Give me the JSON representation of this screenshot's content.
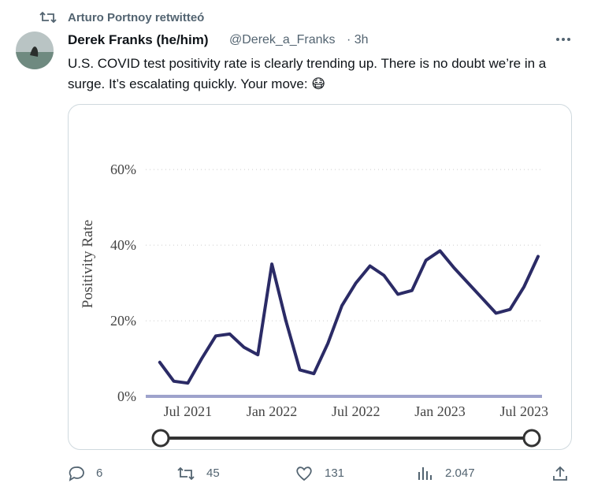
{
  "retweeted_by": "Arturo Portnoy retwitteó",
  "author": {
    "name": "Derek Franks (he/him)",
    "handle": "@Derek_a_Franks",
    "time": "· 3h"
  },
  "tweet_text": "U.S. COVID test positivity rate is clearly trending up. There is no doubt we’re in a surge. It’s escalating quickly. Your move: 😷",
  "stats": {
    "replies": "6",
    "retweets": "45",
    "likes": "131",
    "views": "2.047"
  },
  "chart_data": {
    "type": "line",
    "y_label": "Positivity Rate",
    "color": "#2b2b66",
    "x": [
      "2021-05",
      "2021-06",
      "2021-07",
      "2021-08",
      "2021-09",
      "2021-10",
      "2021-11",
      "2021-12",
      "2022-01",
      "2022-02",
      "2022-03",
      "2022-04",
      "2022-05",
      "2022-06",
      "2022-07",
      "2022-08",
      "2022-09",
      "2022-10",
      "2022-11",
      "2022-12",
      "2023-01",
      "2023-02",
      "2023-03",
      "2023-04",
      "2023-05",
      "2023-06",
      "2023-07",
      "2023-08"
    ],
    "values": [
      9,
      4,
      3.5,
      10,
      16,
      16.5,
      13,
      11,
      35,
      20,
      7,
      6,
      14,
      24,
      30,
      34.5,
      32,
      27,
      28,
      36,
      38.5,
      34,
      30,
      26,
      22,
      23,
      29,
      37
    ],
    "xlim": [
      "2021-04",
      "2023-08"
    ],
    "xticks": [
      {
        "value": "2021-07",
        "label": "Jul 2021"
      },
      {
        "value": "2022-01",
        "label": "Jan 2022"
      },
      {
        "value": "2022-07",
        "label": "Jul 2022"
      },
      {
        "value": "2023-01",
        "label": "Jan 2023"
      },
      {
        "value": "2023-07",
        "label": "Jul 2023"
      }
    ],
    "ylim": [
      -2,
      66
    ],
    "yticks": [
      {
        "value": 0,
        "label": "0%"
      },
      {
        "value": 20,
        "label": "20%"
      },
      {
        "value": 40,
        "label": "40%"
      },
      {
        "value": 60,
        "label": "60%"
      }
    ],
    "grid": true
  }
}
